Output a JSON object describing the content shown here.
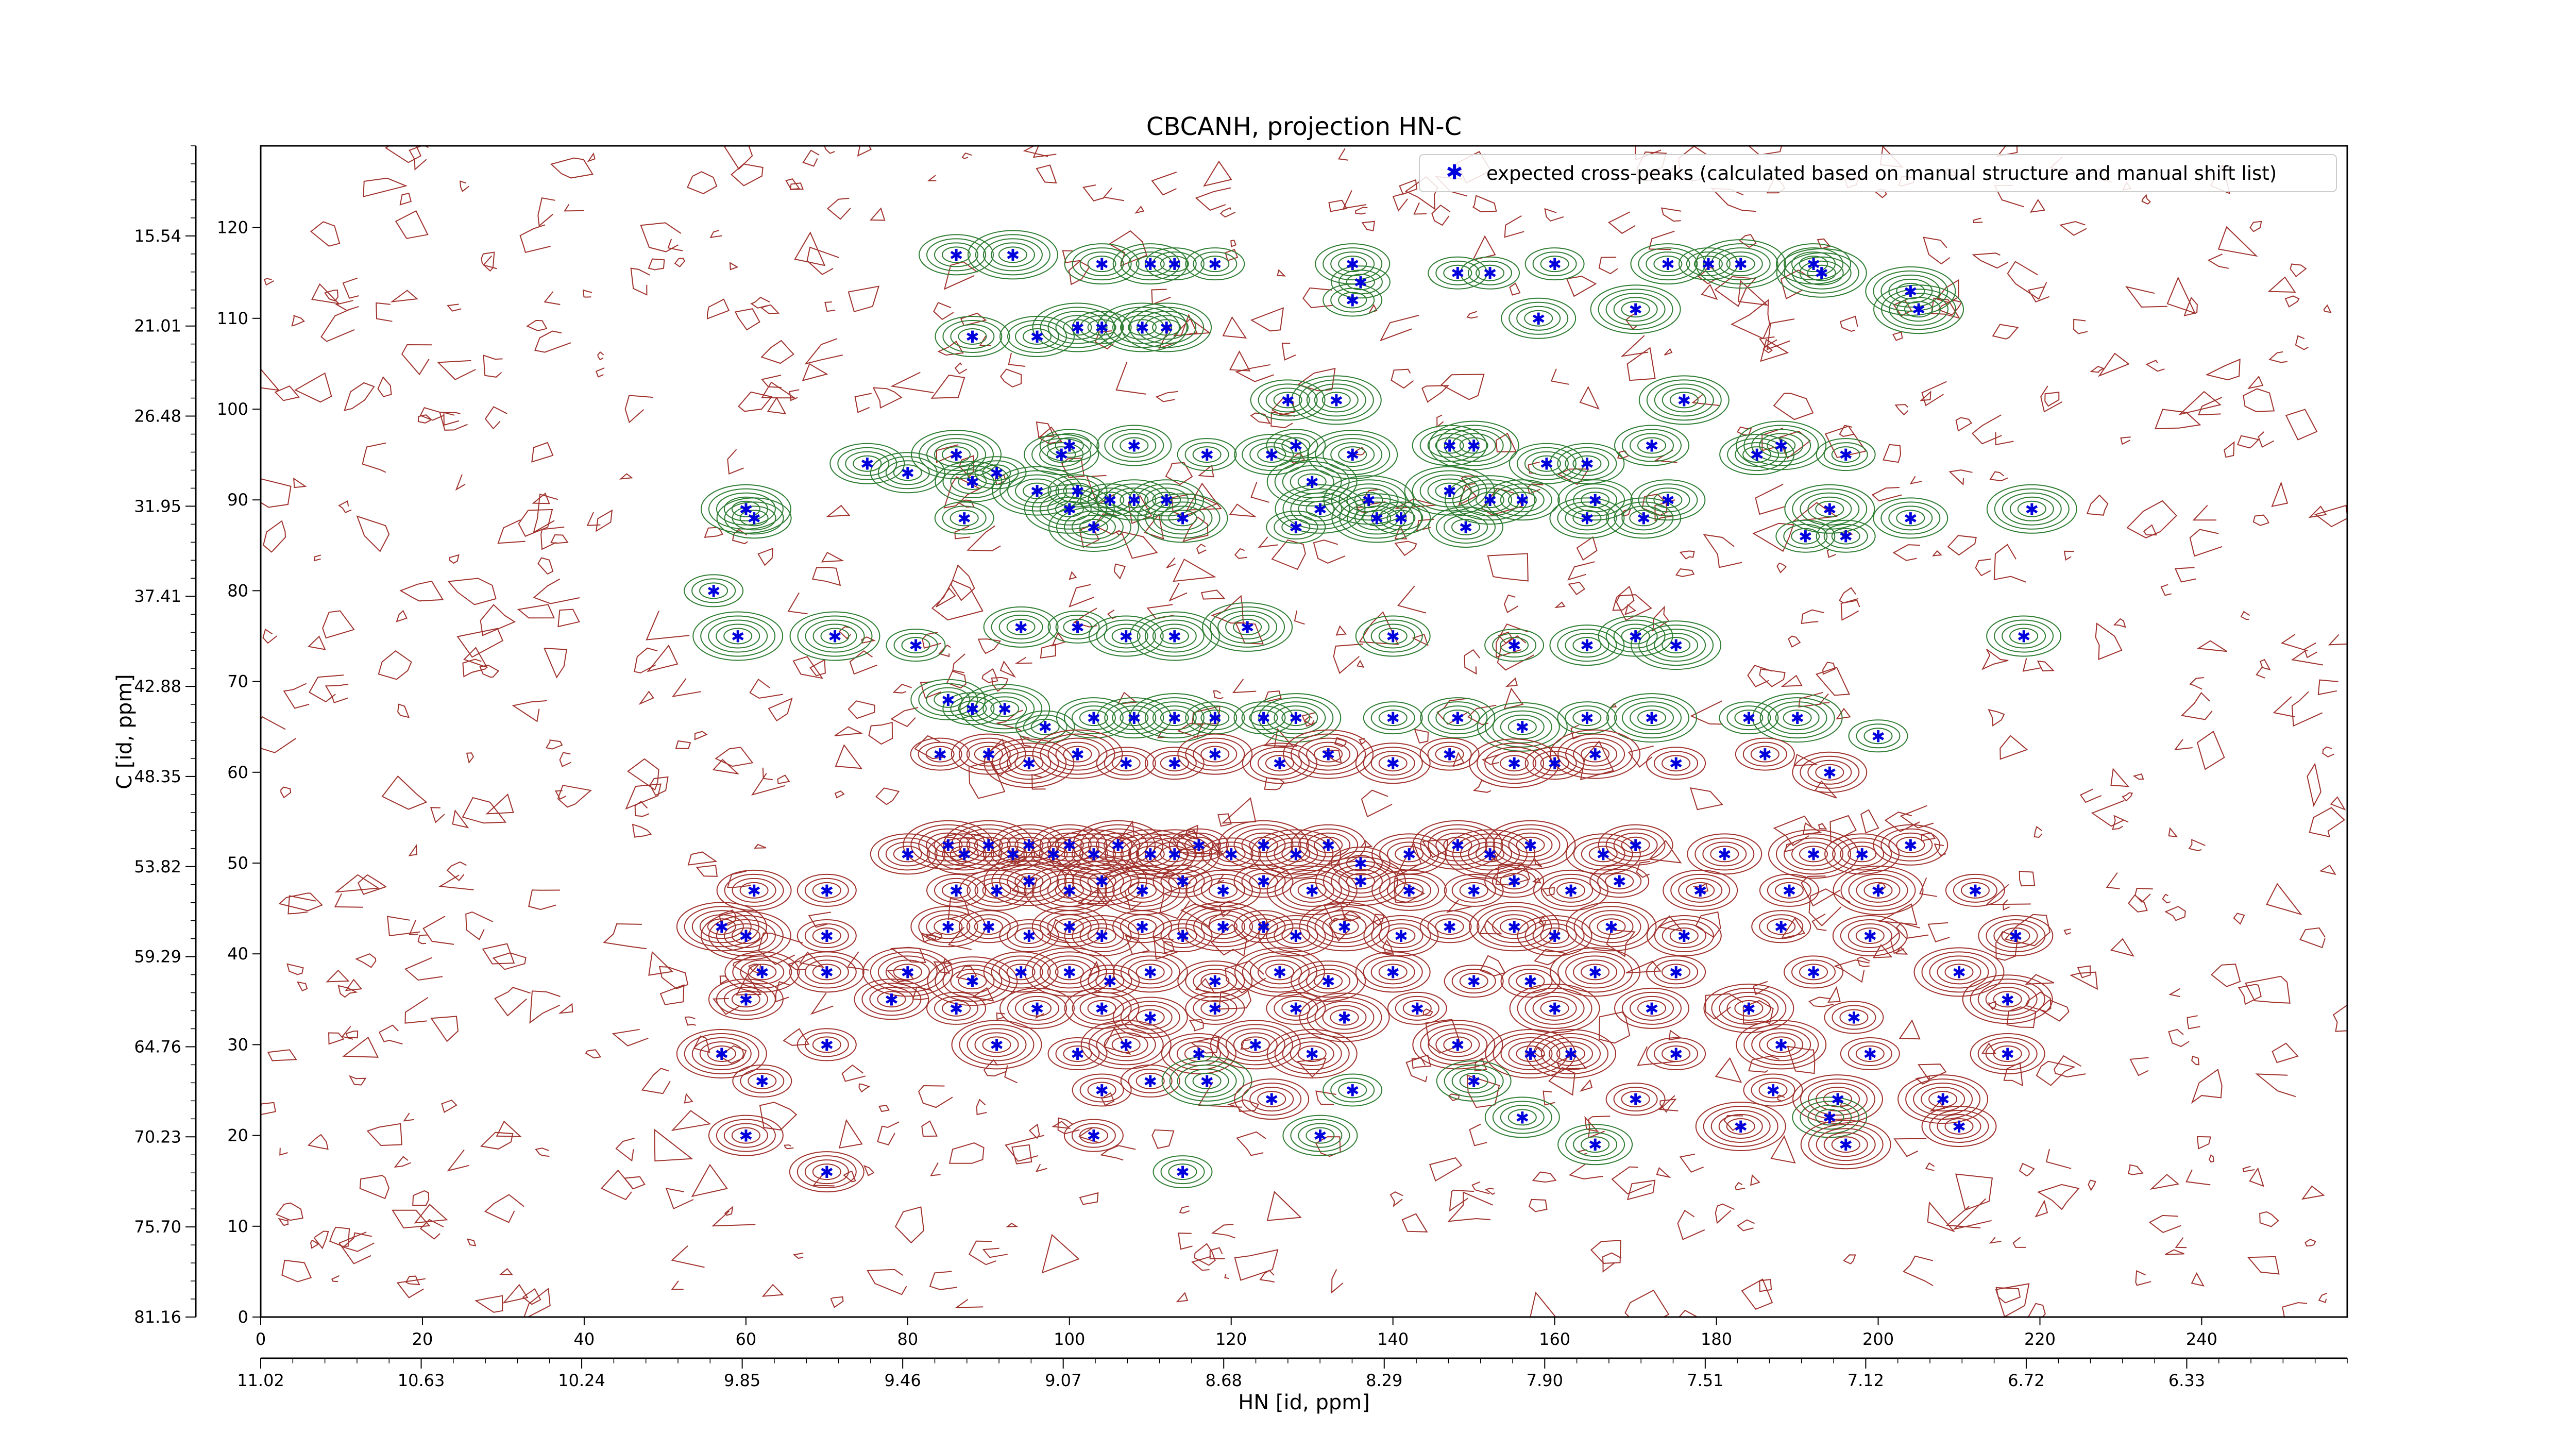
{
  "chart_data": {
    "type": "scatter",
    "title": "CBCANH, projection HN-C",
    "xlabel": "HN [id, ppm]",
    "ylabel": "C [id, ppm]",
    "xlim": [
      0,
      258
    ],
    "ylim": [
      0,
      129
    ],
    "x_ticks": [
      0,
      20,
      40,
      60,
      80,
      100,
      120,
      140,
      160,
      180,
      200,
      220,
      240
    ],
    "y_ticks": [
      0,
      10,
      20,
      30,
      40,
      50,
      60,
      70,
      80,
      90,
      100,
      110,
      120
    ],
    "x_ppm_ticks": [
      "11.02",
      "10.63",
      "10.24",
      "9.85",
      "9.46",
      "9.07",
      "8.68",
      "8.29",
      "7.90",
      "7.51",
      "7.12",
      "6.72",
      "6.33"
    ],
    "y_ppm_ticks": [
      "81.16",
      "75.70",
      "70.23",
      "64.76",
      "59.29",
      "53.82",
      "48.35",
      "42.88",
      "37.41",
      "31.95",
      "26.48",
      "21.01",
      "15.54"
    ],
    "grid": false,
    "legend": {
      "position": "top-right",
      "entries": [
        "expected cross-peaks (calculated based on manual structure and manual shift list)"
      ]
    },
    "colors": {
      "peaks": "#0000dd",
      "positive_contours": "#2e7d32",
      "negative_contours": "#a0322d"
    },
    "series": [
      {
        "name": "expected cross-peaks (calculated based on manual structure and manual shift list)",
        "x": [
          86,
          93,
          104,
          110,
          113,
          118,
          135,
          136,
          148,
          152,
          160,
          174,
          179,
          183,
          192,
          193,
          204,
          88,
          96,
          135,
          158,
          170,
          205,
          101,
          104,
          109,
          112,
          127,
          133,
          176,
          86,
          99,
          100,
          108,
          117,
          125,
          128,
          135,
          147,
          150,
          159,
          164,
          172,
          185,
          188,
          196,
          75,
          80,
          88,
          91,
          96,
          101,
          105,
          108,
          112,
          130,
          137,
          147,
          152,
          156,
          165,
          174,
          194,
          60,
          61,
          87,
          100,
          103,
          114,
          128,
          131,
          138,
          141,
          149,
          164,
          171,
          191,
          196,
          204,
          219,
          56,
          59,
          71,
          81,
          94,
          101,
          107,
          113,
          122,
          140,
          155,
          164,
          170,
          175,
          218,
          85,
          88,
          92,
          97,
          103,
          108,
          113,
          118,
          124,
          128,
          140,
          148,
          156,
          164,
          172,
          184,
          190,
          200,
          84,
          90,
          95,
          101,
          107,
          113,
          118,
          126,
          132,
          140,
          147,
          155,
          160,
          165,
          175,
          186,
          194,
          80,
          85,
          87,
          90,
          93,
          95,
          98,
          100,
          103,
          106,
          110,
          113,
          116,
          120,
          124,
          128,
          132,
          136,
          142,
          148,
          152,
          157,
          166,
          170,
          181,
          192,
          198,
          204,
          61,
          70,
          86,
          91,
          95,
          100,
          104,
          109,
          114,
          119,
          124,
          130,
          136,
          142,
          150,
          155,
          162,
          168,
          178,
          189,
          200,
          212,
          57,
          60,
          70,
          85,
          90,
          95,
          100,
          104,
          109,
          114,
          119,
          124,
          128,
          134,
          141,
          147,
          155,
          160,
          167,
          176,
          188,
          199,
          217,
          62,
          70,
          80,
          88,
          94,
          100,
          105,
          110,
          118,
          126,
          132,
          140,
          150,
          157,
          165,
          175,
          192,
          210,
          60,
          78,
          86,
          96,
          104,
          110,
          118,
          128,
          134,
          143,
          160,
          172,
          184,
          197,
          216,
          57,
          70,
          91,
          101,
          107,
          116,
          123,
          130,
          148,
          157,
          162,
          175,
          188,
          199,
          216,
          62,
          104,
          110,
          117,
          125,
          135,
          150,
          170,
          187,
          195,
          208,
          60,
          103,
          131,
          156,
          183,
          194,
          210,
          70,
          114,
          165,
          196
        ],
        "y": [
          117,
          117,
          116,
          116,
          116,
          116,
          116,
          114,
          115,
          115,
          116,
          116,
          116,
          116,
          116,
          115,
          113,
          108,
          108,
          112,
          110,
          111,
          111,
          109,
          109,
          109,
          109,
          101,
          101,
          101,
          95,
          95,
          96,
          96,
          95,
          95,
          96,
          95,
          96,
          96,
          94,
          94,
          96,
          95,
          96,
          95,
          94,
          93,
          92,
          93,
          91,
          91,
          90,
          90,
          90,
          92,
          90,
          91,
          90,
          90,
          90,
          90,
          89,
          89,
          88,
          88,
          89,
          87,
          88,
          87,
          89,
          88,
          88,
          87,
          88,
          88,
          86,
          86,
          88,
          89,
          80,
          75,
          75,
          74,
          76,
          76,
          75,
          75,
          76,
          75,
          74,
          74,
          75,
          74,
          75,
          68,
          67,
          67,
          65,
          66,
          66,
          66,
          66,
          66,
          66,
          66,
          66,
          65,
          66,
          66,
          66,
          66,
          64,
          62,
          62,
          61,
          62,
          61,
          61,
          62,
          61,
          62,
          61,
          62,
          61,
          61,
          62,
          61,
          62,
          60,
          51,
          52,
          51,
          52,
          51,
          52,
          51,
          52,
          51,
          52,
          51,
          51,
          52,
          51,
          52,
          51,
          52,
          50,
          51,
          52,
          51,
          52,
          51,
          52,
          51,
          51,
          51,
          52,
          47,
          47,
          47,
          47,
          48,
          47,
          48,
          47,
          48,
          47,
          48,
          47,
          48,
          47,
          47,
          48,
          47,
          48,
          47,
          47,
          47,
          47,
          43,
          42,
          42,
          43,
          43,
          42,
          43,
          42,
          43,
          42,
          43,
          43,
          42,
          43,
          42,
          43,
          43,
          42,
          43,
          42,
          43,
          42,
          42,
          38,
          38,
          38,
          37,
          38,
          38,
          37,
          38,
          37,
          38,
          37,
          38,
          37,
          37,
          38,
          38,
          38,
          38,
          35,
          35,
          34,
          34,
          34,
          33,
          34,
          34,
          33,
          34,
          34,
          34,
          34,
          33,
          35,
          29,
          30,
          30,
          29,
          30,
          29,
          30,
          29,
          30,
          29,
          29,
          29,
          30,
          29,
          29,
          26,
          25,
          26,
          26,
          24,
          25,
          26,
          24,
          25,
          24,
          24,
          20,
          20,
          20,
          22,
          21,
          22,
          21,
          16,
          16,
          19,
          19
        ]
      }
    ]
  }
}
